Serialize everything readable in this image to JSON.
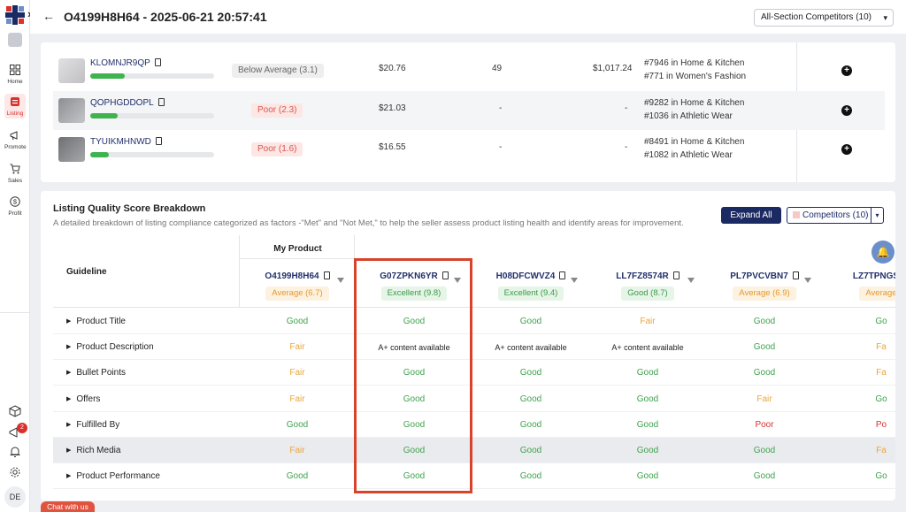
{
  "sidebar": {
    "expand_glyph": "»",
    "items": [
      {
        "label": "Home",
        "icon": "home-grid-icon"
      },
      {
        "label": "Listing",
        "icon": "listing-icon",
        "active": true
      },
      {
        "label": "Promote",
        "icon": "megaphone-icon"
      },
      {
        "label": "Sales",
        "icon": "cart-icon"
      },
      {
        "label": "Profit",
        "icon": "dollar-icon"
      }
    ],
    "notification_count": "2",
    "user_initials": "DE"
  },
  "header": {
    "back_glyph": "←",
    "title": "O4199H8H64 - 2025-06-21 20:57:41",
    "competitor_select": "All-Section Competitors (10)"
  },
  "products": [
    {
      "asin": "KLOMNJR9QP",
      "score_fraction": 0.28,
      "rating": "Below Average (3.1)",
      "rating_style": "grey",
      "price": "$20.76",
      "units": "49",
      "revenue": "$1,017.24",
      "rank1": "#7946 in Home & Kitchen",
      "rank2": "#771 in Women's Fashion"
    },
    {
      "asin": "QOPHGDDOPL",
      "score_fraction": 0.22,
      "rating": "Poor (2.3)",
      "rating_style": "red",
      "price": "$21.03",
      "units": "-",
      "revenue": "-",
      "rank1": "#9282 in Home & Kitchen",
      "rank2": "#1036 in Athletic Wear"
    },
    {
      "asin": "TYUIKMHNWD",
      "score_fraction": 0.15,
      "rating": "Poor (1.6)",
      "rating_style": "red",
      "price": "$16.55",
      "units": "-",
      "revenue": "-",
      "rank1": "#8491 in Home & Kitchen",
      "rank2": "#1082 in Athletic Wear"
    }
  ],
  "breakdown": {
    "title": "Listing Quality Score Breakdown",
    "subtitle": "A detailed breakdown of listing compliance categorized as factors -\"Met\" and \"Not Met,\" to help the seller assess product listing health and identify areas for improvement.",
    "expand_all": "Expand All",
    "competitors_button": "Competitors (10)",
    "guideline_header": "Guideline",
    "my_product_header": "My Product",
    "columns": [
      {
        "asin": "O4199H8H64",
        "score": "Average (6.7)",
        "style": "orange"
      },
      {
        "asin": "G07ZPKN6YR",
        "score": "Excellent (9.8)",
        "style": "green"
      },
      {
        "asin": "H08DFCWVZ4",
        "score": "Excellent (9.4)",
        "style": "green"
      },
      {
        "asin": "LL7FZ8574R",
        "score": "Good (8.7)",
        "style": "green"
      },
      {
        "asin": "PL7PVCVBN7",
        "score": "Average (6.9)",
        "style": "orange"
      },
      {
        "asin": "LZ7TPNGS",
        "score": "Average",
        "style": "orange"
      }
    ],
    "rows": [
      {
        "guideline": "Product Title",
        "values": [
          "Good",
          "Good",
          "Good",
          "Fair",
          "Good",
          "Go"
        ]
      },
      {
        "guideline": "Product Description",
        "values": [
          "Fair",
          "A+ content available",
          "A+ content available",
          "A+ content available",
          "Good",
          "Fa"
        ]
      },
      {
        "guideline": "Bullet Points",
        "values": [
          "Fair",
          "Good",
          "Good",
          "Good",
          "Good",
          "Fa"
        ]
      },
      {
        "guideline": "Offers",
        "values": [
          "Fair",
          "Good",
          "Good",
          "Good",
          "Fair",
          "Go"
        ]
      },
      {
        "guideline": "Fulfilled By",
        "values": [
          "Good",
          "Good",
          "Good",
          "Good",
          "Poor",
          "Po"
        ]
      },
      {
        "guideline": "Rich Media",
        "values": [
          "Fair",
          "Good",
          "Good",
          "Good",
          "Good",
          "Fa"
        ]
      },
      {
        "guideline": "Product Performance",
        "values": [
          "Good",
          "Good",
          "Good",
          "Good",
          "Good",
          "Go"
        ]
      }
    ]
  },
  "chat_label": "Chat with us",
  "colors": {
    "accent": "#1c2a63",
    "good": "#3fa34d",
    "fair": "#eba53b",
    "poor": "#d9302c",
    "highlight_box": "#d9432c"
  }
}
